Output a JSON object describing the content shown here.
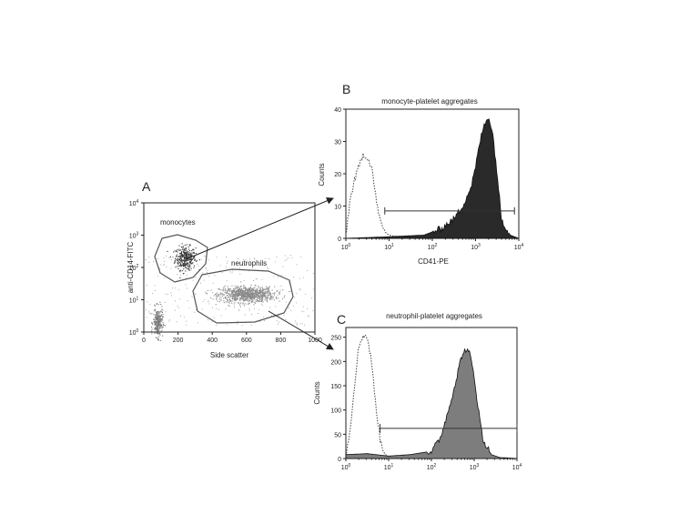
{
  "panels": {
    "A": {
      "letter": "A",
      "xlabel": "Side scatter",
      "ylabel": "anti-CD14-FITC",
      "xticks": [
        "0",
        "200",
        "400",
        "600",
        "800",
        "1000"
      ],
      "gate_labels": [
        "monocytes",
        "neutrophils"
      ]
    },
    "B": {
      "letter": "B",
      "title": "monocyte-platelet aggregates",
      "xlabel": "CD41-PE",
      "ylabel": "Counts",
      "yticks": [
        "0",
        "10",
        "20",
        "30",
        "40"
      ]
    },
    "C": {
      "letter": "C",
      "title": "neutrophil-platelet aggregates",
      "ylabel": "Counts",
      "yticks": [
        "0",
        "50",
        "100",
        "150",
        "200",
        "250"
      ]
    }
  },
  "chart_data": [
    {
      "type": "scatter",
      "panel": "A",
      "xlabel": "Side scatter",
      "ylabel": "anti-CD14-FITC",
      "xlim": [
        0,
        1000
      ],
      "ylim_log10": [
        0,
        4
      ],
      "y_scale": "log",
      "x_scale": "linear",
      "clusters": [
        {
          "name": "monocytes",
          "center": [
            240,
            200
          ],
          "gated": true,
          "color": "#333333"
        },
        {
          "name": "neutrophils",
          "center": [
            600,
            15
          ],
          "gated": true,
          "color": "#8a8a8a"
        },
        {
          "name": "",
          "center": [
            80,
            2
          ],
          "gated": false,
          "color": "#777777"
        }
      ]
    },
    {
      "type": "area",
      "panel": "B",
      "title": "monocyte-platelet aggregates",
      "xlabel": "CD41-PE",
      "ylabel": "Counts",
      "x_scale": "log",
      "xlim_log10": [
        0,
        4
      ],
      "ylim": [
        0,
        40
      ],
      "marker_range_log10": [
        0.9,
        3.9
      ],
      "marker_y": 8.5,
      "series": [
        {
          "style": "dotted-outline",
          "x_log10": [
            0.0,
            0.1,
            0.2,
            0.3,
            0.4,
            0.5,
            0.6,
            0.7,
            0.8,
            0.9,
            1.0,
            1.2,
            1.5,
            2.0,
            2.5,
            3.0,
            3.5,
            4.0
          ],
          "values": [
            1,
            12,
            18,
            22,
            26,
            25,
            22,
            12,
            5,
            2,
            1,
            0.5,
            0.5,
            0.5,
            0.5,
            0.5,
            0.5,
            0
          ]
        },
        {
          "style": "dark-filled",
          "x_log10": [
            0.0,
            1.0,
            1.8,
            2.2,
            2.5,
            2.7,
            2.9,
            3.0,
            3.1,
            3.2,
            3.3,
            3.4,
            3.5,
            3.6,
            3.8,
            4.0
          ],
          "values": [
            0,
            0.5,
            1,
            3,
            6,
            10,
            16,
            22,
            30,
            35,
            38,
            32,
            20,
            6,
            1,
            0
          ]
        }
      ]
    },
    {
      "type": "area",
      "panel": "C",
      "title": "neutrophil-platelet aggregates",
      "ylabel": "Counts",
      "x_scale": "log",
      "xlim_log10": [
        0,
        4
      ],
      "ylim": [
        0,
        270
      ],
      "marker_range_log10": [
        0.8,
        4.0
      ],
      "marker_y": 62,
      "series": [
        {
          "style": "dotted-outline",
          "x_log10": [
            0.0,
            0.1,
            0.2,
            0.3,
            0.4,
            0.5,
            0.6,
            0.7,
            0.8,
            0.9,
            1.0,
            1.2,
            1.5,
            2.0,
            3.0,
            4.0
          ],
          "values": [
            5,
            60,
            150,
            230,
            255,
            250,
            200,
            110,
            40,
            10,
            3,
            1,
            1,
            1,
            1,
            0
          ]
        },
        {
          "style": "gray-filled",
          "x_log10": [
            0.0,
            0.5,
            1.0,
            1.5,
            2.0,
            2.2,
            2.4,
            2.6,
            2.7,
            2.8,
            2.9,
            3.0,
            3.1,
            3.2,
            3.4,
            3.6,
            4.0
          ],
          "values": [
            8,
            10,
            5,
            8,
            15,
            40,
            100,
            170,
            210,
            225,
            215,
            170,
            100,
            40,
            8,
            2,
            0
          ]
        }
      ]
    }
  ]
}
